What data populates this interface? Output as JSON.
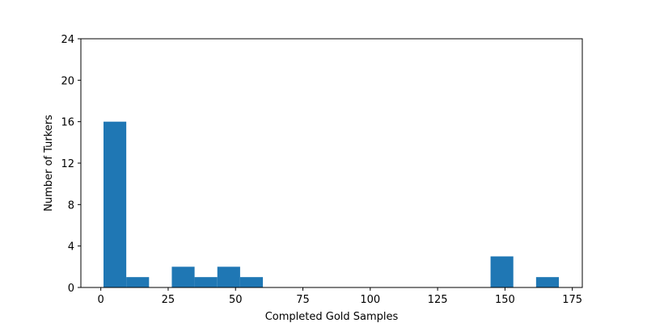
{
  "chart_data": {
    "type": "bar",
    "xlabel": "Completed Gold Samples",
    "ylabel": "Number of Turkers",
    "xlim": [
      -7.4,
      178.7
    ],
    "ylim": [
      0,
      24
    ],
    "xticks": [
      0,
      25,
      50,
      75,
      100,
      125,
      150,
      175
    ],
    "yticks": [
      0,
      4,
      8,
      12,
      16,
      20,
      24
    ],
    "bar_color": "#1f77b4",
    "bins": [
      {
        "x0": 1.0,
        "x1": 9.45,
        "count": 16
      },
      {
        "x0": 9.45,
        "x1": 17.9,
        "count": 1
      },
      {
        "x0": 17.9,
        "x1": 26.35,
        "count": 0
      },
      {
        "x0": 26.35,
        "x1": 34.8,
        "count": 2
      },
      {
        "x0": 34.8,
        "x1": 43.25,
        "count": 1
      },
      {
        "x0": 43.25,
        "x1": 51.7,
        "count": 2
      },
      {
        "x0": 51.7,
        "x1": 60.15,
        "count": 1
      },
      {
        "x0": 60.15,
        "x1": 68.6,
        "count": 0
      },
      {
        "x0": 68.6,
        "x1": 77.05,
        "count": 0
      },
      {
        "x0": 77.05,
        "x1": 85.5,
        "count": 0
      },
      {
        "x0": 85.5,
        "x1": 93.95,
        "count": 0
      },
      {
        "x0": 93.95,
        "x1": 102.4,
        "count": 0
      },
      {
        "x0": 102.4,
        "x1": 110.85,
        "count": 0
      },
      {
        "x0": 110.85,
        "x1": 119.3,
        "count": 0
      },
      {
        "x0": 119.3,
        "x1": 127.75,
        "count": 0
      },
      {
        "x0": 127.75,
        "x1": 136.2,
        "count": 0
      },
      {
        "x0": 136.2,
        "x1": 144.65,
        "count": 0
      },
      {
        "x0": 144.65,
        "x1": 153.1,
        "count": 3
      },
      {
        "x0": 153.1,
        "x1": 161.55,
        "count": 0
      },
      {
        "x0": 161.55,
        "x1": 170.0,
        "count": 1
      }
    ]
  }
}
